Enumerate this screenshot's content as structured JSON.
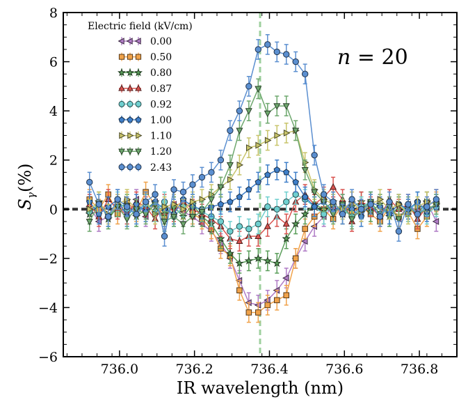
{
  "chart_data": {
    "type": "line",
    "xlabel": "IR wavelength (nm)",
    "ylabel": "S_γ(%)",
    "ylabel_main": "S",
    "ylabel_sub": "γ",
    "ylabel_rest": "(%)",
    "xlim": [
      735.85,
      736.9
    ],
    "ylim": [
      -6,
      8
    ],
    "xticks": [
      736.0,
      736.2,
      736.4,
      736.6,
      736.8
    ],
    "xtick_labels": [
      "736.0",
      "736.2",
      "736.4",
      "736.6",
      "736.8"
    ],
    "yticks": [
      -6,
      -4,
      -2,
      0,
      2,
      4,
      6,
      8
    ],
    "ytick_labels": [
      "−6",
      "−4",
      "−2",
      "0",
      "2",
      "4",
      "6",
      "8"
    ],
    "legend_title": "Electric field (kV/cm)",
    "legend_position": "top-left",
    "annotation_n": "n",
    "annotation_eq": " = 20",
    "zero_line_color": "#333333",
    "resonance_x": 736.375,
    "resonance_color": "#9fd09f",
    "x": [
      735.92,
      735.945,
      735.97,
      735.995,
      736.02,
      736.045,
      736.07,
      736.095,
      736.12,
      736.145,
      736.17,
      736.195,
      736.22,
      736.245,
      736.27,
      736.295,
      736.32,
      736.345,
      736.37,
      736.395,
      736.42,
      736.445,
      736.47,
      736.495,
      736.52,
      736.545,
      736.57,
      736.595,
      736.62,
      736.645,
      736.67,
      736.695,
      736.72,
      736.745,
      736.77,
      736.795,
      736.82,
      736.845
    ],
    "series": [
      {
        "name": "0.00",
        "color": "#b07cc6",
        "marker": "triangle-left",
        "values": [
          0.1,
          -0.5,
          -0.3,
          0.2,
          -0.2,
          0.4,
          -0.3,
          0.3,
          -0.4,
          0.2,
          -0.1,
          -0.3,
          -0.6,
          -0.9,
          -1.4,
          -2.0,
          -2.9,
          -3.8,
          -3.9,
          -3.7,
          -3.3,
          -2.8,
          -2.0,
          -1.3,
          -0.7,
          -0.3,
          0.1,
          -0.2,
          0.3,
          -0.1,
          0.2,
          -0.3,
          0.1,
          -0.4,
          0.2,
          -0.1,
          0.3,
          -0.5
        ],
        "errors": [
          0.4,
          0.4,
          0.4,
          0.4,
          0.4,
          0.4,
          0.4,
          0.4,
          0.4,
          0.4,
          0.4,
          0.4,
          0.4,
          0.4,
          0.4,
          0.4,
          0.4,
          0.4,
          0.4,
          0.4,
          0.4,
          0.4,
          0.4,
          0.4,
          0.4,
          0.4,
          0.4,
          0.4,
          0.4,
          0.4,
          0.4,
          0.4,
          0.4,
          0.4,
          0.4,
          0.4,
          0.4,
          0.4
        ]
      },
      {
        "name": "0.50",
        "color": "#f0a24a",
        "marker": "square",
        "values": [
          0.4,
          0.0,
          0.6,
          -0.2,
          0.3,
          -0.1,
          0.7,
          0.2,
          -0.3,
          0.1,
          0.3,
          -0.2,
          -0.4,
          -0.8,
          -1.6,
          -1.9,
          -3.3,
          -4.2,
          -4.2,
          -3.9,
          -3.7,
          -3.5,
          -2.0,
          -0.8,
          -0.3,
          0.0,
          -0.4,
          0.2,
          -0.1,
          0.1,
          -0.2,
          -0.5,
          0.1,
          -0.3,
          -0.1,
          -0.8,
          -0.3,
          0.3
        ],
        "errors": [
          0.4,
          0.4,
          0.4,
          0.4,
          0.4,
          0.4,
          0.4,
          0.4,
          0.4,
          0.4,
          0.4,
          0.4,
          0.4,
          0.4,
          0.4,
          0.4,
          0.4,
          0.4,
          0.4,
          0.4,
          0.4,
          0.4,
          0.4,
          0.4,
          0.4,
          0.4,
          0.4,
          0.4,
          0.4,
          0.4,
          0.4,
          0.4,
          0.4,
          0.4,
          0.4,
          0.4,
          0.4,
          0.4
        ]
      },
      {
        "name": "0.80",
        "color": "#5a9e5a",
        "marker": "star",
        "values": [
          -0.2,
          0.3,
          -0.4,
          0.1,
          0.2,
          -0.3,
          0.0,
          0.3,
          -0.2,
          0.1,
          -0.3,
          0.2,
          -0.3,
          -0.6,
          -1.2,
          -1.8,
          -2.2,
          -2.1,
          -2.0,
          -2.1,
          -2.2,
          -1.2,
          -0.6,
          -0.2,
          0.2,
          0.0,
          0.3,
          -0.2,
          0.1,
          0.3,
          -0.1,
          0.2,
          -0.3,
          0.1,
          0.0,
          -0.2,
          0.3,
          0.2
        ],
        "errors": [
          0.4,
          0.4,
          0.4,
          0.4,
          0.4,
          0.4,
          0.4,
          0.4,
          0.4,
          0.4,
          0.4,
          0.4,
          0.4,
          0.4,
          0.4,
          0.4,
          0.4,
          0.4,
          0.4,
          0.4,
          0.4,
          0.4,
          0.4,
          0.4,
          0.4,
          0.4,
          0.4,
          0.4,
          0.4,
          0.4,
          0.4,
          0.4,
          0.4,
          0.4,
          0.4,
          0.4,
          0.4,
          0.4
        ]
      },
      {
        "name": "0.87",
        "color": "#d9534f",
        "marker": "triangle-up",
        "values": [
          0.2,
          -0.3,
          0.4,
          0.0,
          -0.2,
          0.3,
          0.1,
          -0.4,
          0.2,
          -0.1,
          0.3,
          0.0,
          -0.2,
          -0.4,
          -0.7,
          -1.2,
          -1.3,
          -1.1,
          -1.1,
          -0.7,
          -0.3,
          -0.6,
          0.3,
          0.6,
          0.2,
          0.5,
          0.9,
          0.4,
          -0.5,
          0.3,
          0.1,
          -0.3,
          0.4,
          0.0,
          0.2,
          -0.4,
          0.1,
          0.4
        ],
        "errors": [
          0.4,
          0.4,
          0.4,
          0.4,
          0.4,
          0.4,
          0.4,
          0.4,
          0.4,
          0.4,
          0.4,
          0.4,
          0.4,
          0.4,
          0.4,
          0.4,
          0.4,
          0.4,
          0.4,
          0.4,
          0.4,
          0.4,
          0.4,
          0.4,
          0.4,
          0.4,
          0.4,
          0.4,
          0.4,
          0.4,
          0.4,
          0.4,
          0.4,
          0.4,
          0.4,
          0.4,
          0.4,
          0.4
        ]
      },
      {
        "name": "0.92",
        "color": "#6fcfcf",
        "marker": "circle",
        "values": [
          -0.1,
          0.2,
          -0.3,
          0.3,
          0.0,
          -0.2,
          0.2,
          -0.1,
          0.3,
          -0.3,
          0.1,
          0.2,
          -0.1,
          -0.3,
          -0.5,
          -0.9,
          -0.7,
          -0.8,
          -0.6,
          0.1,
          0.0,
          0.3,
          0.6,
          0.4,
          0.1,
          -0.2,
          0.2,
          0.0,
          -0.3,
          0.1,
          0.3,
          -0.2,
          0.0,
          0.2,
          -0.1,
          0.3,
          -0.2,
          0.1
        ],
        "errors": [
          0.4,
          0.4,
          0.4,
          0.4,
          0.4,
          0.4,
          0.4,
          0.4,
          0.4,
          0.4,
          0.4,
          0.4,
          0.4,
          0.4,
          0.4,
          0.4,
          0.4,
          0.4,
          0.4,
          0.4,
          0.4,
          0.4,
          0.4,
          0.4,
          0.4,
          0.4,
          0.4,
          0.4,
          0.4,
          0.4,
          0.4,
          0.4,
          0.4,
          0.4,
          0.4,
          0.4,
          0.4,
          0.4
        ]
      },
      {
        "name": "1.00",
        "color": "#3f7fc9",
        "marker": "pentagon",
        "values": [
          0.3,
          -0.2,
          0.1,
          0.4,
          -0.3,
          0.2,
          -0.1,
          0.3,
          0.0,
          -0.2,
          0.4,
          0.1,
          0.0,
          0.1,
          0.2,
          0.3,
          0.5,
          0.8,
          1.1,
          1.4,
          1.6,
          1.5,
          1.1,
          0.5,
          0.1,
          0.3,
          -0.1,
          0.2,
          0.0,
          -0.3,
          0.3,
          0.1,
          -0.2,
          0.2,
          0.0,
          0.3,
          -0.1,
          0.2
        ],
        "errors": [
          0.4,
          0.4,
          0.4,
          0.4,
          0.4,
          0.4,
          0.4,
          0.4,
          0.4,
          0.4,
          0.4,
          0.4,
          0.4,
          0.4,
          0.4,
          0.4,
          0.4,
          0.4,
          0.4,
          0.4,
          0.4,
          0.4,
          0.4,
          0.4,
          0.4,
          0.4,
          0.4,
          0.4,
          0.4,
          0.4,
          0.4,
          0.4,
          0.4,
          0.4,
          0.4,
          0.4,
          0.4,
          0.4
        ]
      },
      {
        "name": "1.10",
        "color": "#c8c46a",
        "marker": "triangle-right",
        "values": [
          0.0,
          0.3,
          -0.2,
          0.2,
          0.4,
          0.0,
          0.3,
          -0.2,
          0.1,
          0.2,
          0.0,
          0.3,
          0.4,
          0.6,
          0.9,
          1.2,
          1.8,
          2.5,
          2.6,
          2.8,
          3.0,
          3.1,
          3.2,
          1.9,
          0.8,
          0.4,
          0.2,
          0.0,
          0.3,
          -0.1,
          0.2,
          0.4,
          0.0,
          0.2,
          -0.2,
          0.1,
          0.3,
          0.2
        ],
        "errors": [
          0.4,
          0.4,
          0.4,
          0.4,
          0.4,
          0.4,
          0.4,
          0.4,
          0.4,
          0.4,
          0.4,
          0.4,
          0.4,
          0.4,
          0.4,
          0.4,
          0.4,
          0.4,
          0.4,
          0.4,
          0.4,
          0.4,
          0.4,
          0.4,
          0.4,
          0.4,
          0.4,
          0.4,
          0.4,
          0.4,
          0.4,
          0.4,
          0.4,
          0.4,
          0.4,
          0.4,
          0.4,
          0.4
        ]
      },
      {
        "name": "1.20",
        "color": "#6ea86e",
        "marker": "triangle-down",
        "values": [
          -0.5,
          0.2,
          -0.3,
          0.1,
          -0.4,
          0.0,
          -0.2,
          0.2,
          -0.5,
          -0.3,
          -0.6,
          -0.3,
          -0.1,
          0.4,
          0.9,
          1.8,
          3.2,
          4.0,
          4.9,
          3.9,
          4.2,
          4.2,
          3.2,
          1.6,
          0.7,
          0.3,
          -0.2,
          0.2,
          -0.4,
          0.0,
          0.3,
          -0.2,
          0.1,
          -0.4,
          0.1,
          -0.2,
          0.0,
          0.2
        ],
        "errors": [
          0.4,
          0.4,
          0.4,
          0.4,
          0.4,
          0.4,
          0.4,
          0.4,
          0.4,
          0.4,
          0.4,
          0.4,
          0.4,
          0.4,
          0.4,
          0.4,
          0.4,
          0.4,
          0.4,
          0.4,
          0.4,
          0.4,
          0.4,
          0.4,
          0.4,
          0.4,
          0.4,
          0.4,
          0.4,
          0.4,
          0.4,
          0.4,
          0.4,
          0.4,
          0.4,
          0.4,
          0.4,
          0.4
        ]
      },
      {
        "name": "2.43",
        "color": "#5b8fd0",
        "marker": "circle",
        "values": [
          1.1,
          0.2,
          -0.3,
          0.4,
          0.1,
          -0.2,
          0.3,
          0.6,
          -1.1,
          0.8,
          0.7,
          1.0,
          1.3,
          1.5,
          2.0,
          3.2,
          4.0,
          5.0,
          6.5,
          6.7,
          6.4,
          6.3,
          6.0,
          5.5,
          2.2,
          0.6,
          0.3,
          -0.2,
          0.4,
          0.0,
          0.2,
          -0.3,
          0.3,
          -0.9,
          0.2,
          -0.2,
          0.1,
          0.4
        ],
        "errors": [
          0.4,
          0.4,
          0.4,
          0.4,
          0.4,
          0.4,
          0.4,
          0.4,
          0.4,
          0.4,
          0.4,
          0.4,
          0.4,
          0.4,
          0.4,
          0.4,
          0.4,
          0.4,
          0.4,
          0.4,
          0.4,
          0.4,
          0.4,
          0.4,
          0.4,
          0.4,
          0.4,
          0.4,
          0.4,
          0.4,
          0.4,
          0.4,
          0.4,
          0.4,
          0.4,
          0.4,
          0.4,
          0.4
        ]
      }
    ]
  }
}
